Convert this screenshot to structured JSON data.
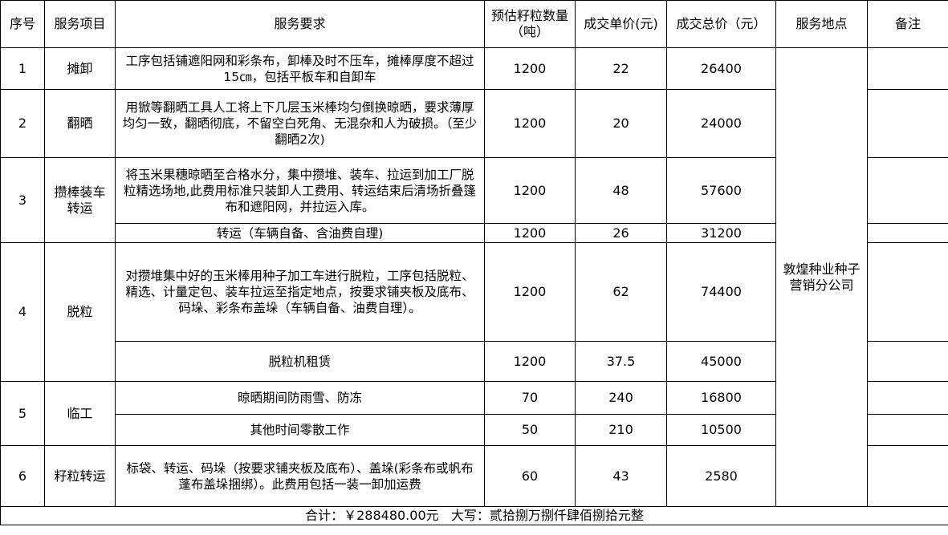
{
  "headers": [
    "序号",
    "服务项目",
    "服务要求",
    "预估籽粒数量（吨）",
    "成交单价(元)",
    "成交总价（元）",
    "服务地点",
    "备注"
  ],
  "rows": [
    {
      "no": "1",
      "item": "摊卸",
      "req": "工序包括铺遮阳网和彩条布，卸棒及时不压车，摊棒厚度不超过15㎝，包括平板车和自卸车",
      "qty": "1200",
      "price": "22",
      "total": "26400"
    },
    {
      "no": "2",
      "item": "翻晒",
      "req": "用锨等翻晒工具人工将上下几层玉米棒均匀倒换晾晒，要求薄厚均匀一致，翻晒彻底，不留空白死角、无混杂和人为破损。（至少翻晒2次)",
      "qty": "1200",
      "price": "20",
      "total": "24000"
    },
    {
      "no": "3",
      "item": "攒棒装车转运",
      "req": "将玉米果穗晾晒至合格水分，集中攒堆、装车、拉运到加工厂脱粒精选场地,此费用标准只装卸人工费用、转运结束后清场折叠篷布和遮阳网，并拉运入库。",
      "qty": "1200",
      "price": "48",
      "total": "57600"
    },
    {
      "req": "转运（车辆自备、含油费自理)",
      "qty": "1200",
      "price": "26",
      "total": "31200"
    },
    {
      "no": "4",
      "item": "脱粒",
      "req": "对攒堆集中好的玉米棒用种子加工车进行脱粒，工序包括脱粒、精选、计量定包、装车拉运至指定地点，按要求铺夹板及底布、码垛、彩条布盖垛（车辆自备、油费自理）。",
      "qty": "1200",
      "price": "62",
      "total": "74400"
    },
    {
      "req": "脱粒机租赁",
      "qty": "1200",
      "price": "37.5",
      "total": "45000"
    },
    {
      "no": "5",
      "item": "临工",
      "req": "晾晒期间防雨雪、防冻",
      "qty": "70",
      "price": "240",
      "total": "16800"
    },
    {
      "req": "其他时间零散工作",
      "qty": "50",
      "price": "210",
      "total": "10500"
    },
    {
      "no": "6",
      "item": "籽粒转运",
      "req": "标袋、转运、码垛（按要求铺夹板及底布）、盖垛(彩条布或帆布蓬布盖垛捆绑）。此费用包括一装一卸加运费",
      "qty": "60",
      "price": "43",
      "total": "2580"
    }
  ],
  "location": "敦煌种业种子营销分公司",
  "summary": "合计：￥288480.00元   大写：贰拾捌万捌仟肆佰捌拾元整"
}
